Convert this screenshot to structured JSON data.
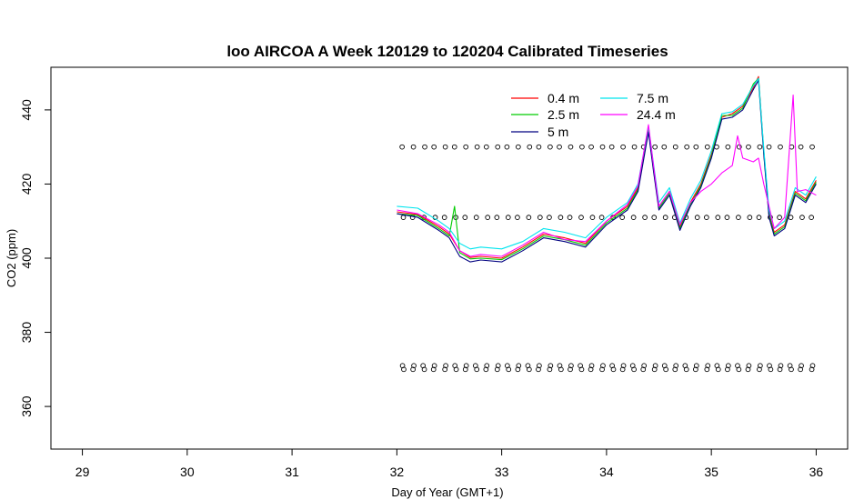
{
  "chart_data": {
    "type": "line",
    "title": "loo AIRCOA A  Week 120129 to 120204  Calibrated Timeseries",
    "xlabel": "Day of Year (GMT+1)",
    "ylabel": "CO2 (ppm)",
    "xlim": [
      28.7,
      36.3
    ],
    "ylim": [
      348.5,
      451.5
    ],
    "xticks": [
      29,
      30,
      31,
      32,
      33,
      34,
      35,
      36
    ],
    "yticks": [
      360,
      380,
      400,
      420,
      440
    ],
    "grid": false,
    "legend": {
      "position": "top-right",
      "columns": 2
    },
    "series": [
      {
        "name": "0.4 m",
        "color": "#ff0000",
        "x": [
          32.0,
          32.2,
          32.4,
          32.5,
          32.6,
          32.7,
          32.8,
          33.0,
          33.2,
          33.4,
          33.6,
          33.8,
          34.0,
          34.2,
          34.3,
          34.4,
          34.45,
          34.5,
          34.6,
          34.7,
          34.8,
          34.9,
          35.0,
          35.1,
          35.2,
          35.3,
          35.4,
          35.45,
          35.5,
          35.55,
          35.6,
          35.7,
          35.8,
          35.9,
          36.0
        ],
        "y": [
          412.5,
          411.8,
          408.5,
          406.5,
          402.0,
          400.2,
          400.5,
          400.0,
          403.0,
          406.5,
          405.5,
          404.0,
          410.0,
          414.0,
          419.0,
          435.0,
          424.0,
          414.0,
          418.0,
          408.5,
          415.0,
          420.0,
          428.0,
          438.0,
          439.0,
          441.0,
          446.0,
          449.0,
          429.0,
          412.0,
          407.0,
          409.0,
          418.0,
          416.0,
          421.0
        ]
      },
      {
        "name": "2.5 m",
        "color": "#00cc00",
        "x": [
          32.0,
          32.2,
          32.4,
          32.5,
          32.55,
          32.6,
          32.7,
          32.8,
          33.0,
          33.2,
          33.4,
          33.6,
          33.8,
          34.0,
          34.2,
          34.3,
          34.4,
          34.45,
          34.5,
          34.6,
          34.7,
          34.8,
          34.9,
          35.0,
          35.1,
          35.2,
          35.3,
          35.4,
          35.45,
          35.5,
          35.55,
          35.6,
          35.7,
          35.8,
          35.9,
          36.0
        ],
        "y": [
          412.0,
          411.5,
          408.0,
          406.0,
          414.0,
          401.5,
          399.8,
          400.0,
          399.6,
          402.5,
          406.0,
          405.0,
          403.5,
          409.5,
          413.5,
          418.5,
          434.5,
          423.5,
          413.5,
          417.5,
          408.0,
          414.5,
          419.5,
          427.5,
          438.5,
          438.5,
          440.5,
          447.0,
          448.5,
          428.5,
          411.5,
          406.5,
          408.5,
          417.5,
          415.5,
          420.5
        ]
      },
      {
        "name": "5 m",
        "color": "#000080",
        "x": [
          32.0,
          32.2,
          32.4,
          32.5,
          32.6,
          32.7,
          32.8,
          33.0,
          33.2,
          33.4,
          33.6,
          33.8,
          34.0,
          34.2,
          34.3,
          34.4,
          34.45,
          34.5,
          34.6,
          34.7,
          34.8,
          34.9,
          35.0,
          35.1,
          35.2,
          35.3,
          35.4,
          35.45,
          35.5,
          35.55,
          35.6,
          35.7,
          35.8,
          35.9,
          36.0
        ],
        "y": [
          412.0,
          411.0,
          407.5,
          405.5,
          400.5,
          399.0,
          399.5,
          399.0,
          402.0,
          405.5,
          404.5,
          403.0,
          409.0,
          413.0,
          418.0,
          434.0,
          423.0,
          413.0,
          417.0,
          407.5,
          414.0,
          419.0,
          427.0,
          437.5,
          438.0,
          440.0,
          445.5,
          448.0,
          428.0,
          411.0,
          406.0,
          408.0,
          417.0,
          415.0,
          420.0
        ]
      },
      {
        "name": "7.5 m",
        "color": "#00e5ee",
        "x": [
          32.0,
          32.2,
          32.4,
          32.5,
          32.6,
          32.7,
          32.8,
          33.0,
          33.2,
          33.4,
          33.6,
          33.8,
          34.0,
          34.2,
          34.3,
          34.4,
          34.45,
          34.5,
          34.6,
          34.7,
          34.8,
          34.9,
          35.0,
          35.1,
          35.2,
          35.3,
          35.4,
          35.45,
          35.5,
          35.55,
          35.6,
          35.7,
          35.8,
          35.9,
          36.0
        ],
        "y": [
          414.0,
          413.5,
          410.0,
          408.0,
          404.0,
          402.5,
          403.0,
          402.5,
          404.5,
          408.0,
          407.0,
          405.5,
          411.0,
          415.0,
          420.0,
          435.5,
          425.0,
          415.0,
          419.0,
          409.5,
          416.0,
          421.0,
          429.0,
          439.0,
          439.5,
          441.5,
          446.5,
          448.5,
          429.5,
          413.0,
          408.0,
          410.0,
          419.0,
          417.0,
          422.0
        ]
      },
      {
        "name": "24.4 m",
        "color": "#ff00ff",
        "x": [
          32.0,
          32.2,
          32.4,
          32.5,
          32.6,
          32.7,
          32.8,
          33.0,
          33.2,
          33.4,
          33.6,
          33.8,
          34.0,
          34.2,
          34.3,
          34.4,
          34.45,
          34.5,
          34.6,
          34.7,
          34.8,
          34.9,
          35.0,
          35.1,
          35.2,
          35.25,
          35.3,
          35.4,
          35.45,
          35.5,
          35.6,
          35.7,
          35.78,
          35.82,
          35.9,
          36.0
        ],
        "y": [
          413.0,
          412.0,
          409.0,
          407.0,
          402.0,
          400.5,
          401.0,
          400.5,
          403.5,
          407.0,
          405.0,
          404.5,
          410.0,
          414.5,
          419.5,
          436.0,
          424.5,
          414.0,
          418.0,
          409.0,
          415.0,
          418.0,
          420.0,
          423.0,
          425.0,
          433.0,
          427.0,
          426.0,
          427.0,
          420.0,
          408.0,
          411.0,
          444.0,
          418.0,
          418.5,
          417.0
        ]
      }
    ],
    "marker_rows": [
      430,
      411,
      371,
      370
    ]
  }
}
